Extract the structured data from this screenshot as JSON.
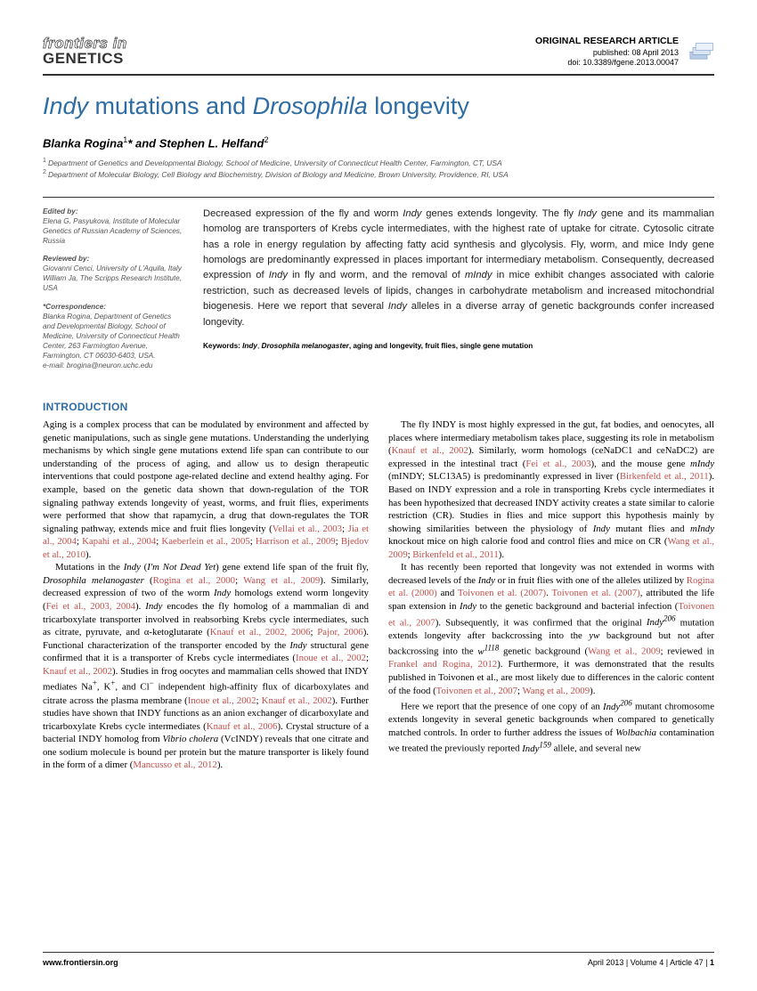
{
  "header": {
    "journal_line1": "frontiers in",
    "journal_line2": "GENETICS",
    "article_type": "ORIGINAL RESEARCH ARTICLE",
    "published": "published: 08 April 2013",
    "doi": "doi: 10.3389/fgene.2013.00047"
  },
  "title": {
    "part1": "Indy",
    "part2": " mutations and ",
    "part3": "Drosophila",
    "part4": " longevity"
  },
  "authors_html": "Blanka Rogina<sup>1</sup>* and Stephen L. Helfand<sup>2</sup>",
  "affiliations": {
    "a1": "Department of Genetics and Developmental Biology, School of Medicine, University of Connecticut Health Center, Farmington, CT, USA",
    "a2": "Department of Molecular Biology, Cell Biology and Biochemistry, Division of Biology and Medicine, Brown University, Providence, RI, USA"
  },
  "sidebar": {
    "edited_by_label": "Edited by:",
    "edited_by": "Elena G. Pasyukova, Institute of Molecular Genetics of Russian Academy of Sciences, Russia",
    "reviewed_by_label": "Reviewed by:",
    "reviewer1": "Giovanni Cenci, University of L'Aquila, Italy",
    "reviewer2": "William Ja, The Scripps Research Institute, USA",
    "corr_label": "*Correspondence:",
    "corr": "Blanka Rogina, Department of Genetics and Developmental Biology, School of Medicine, University of Connecticut Health Center, 263 Farmington Avenue, Farmington, CT 06030-6403, USA.",
    "email": "e-mail: brogina@neuron.uchc.edu"
  },
  "keywords": {
    "label": "Keywords: ",
    "k1": "Indy",
    "k2": "Drosophila melanogaster",
    "rest": ", aging and longevity, fruit flies, single gene mutation"
  },
  "intro_heading": "INTRODUCTION",
  "footer": {
    "left": "www.frontiersin.org",
    "right": "April 2013 | Volume 4 | Article 47 | 1"
  }
}
